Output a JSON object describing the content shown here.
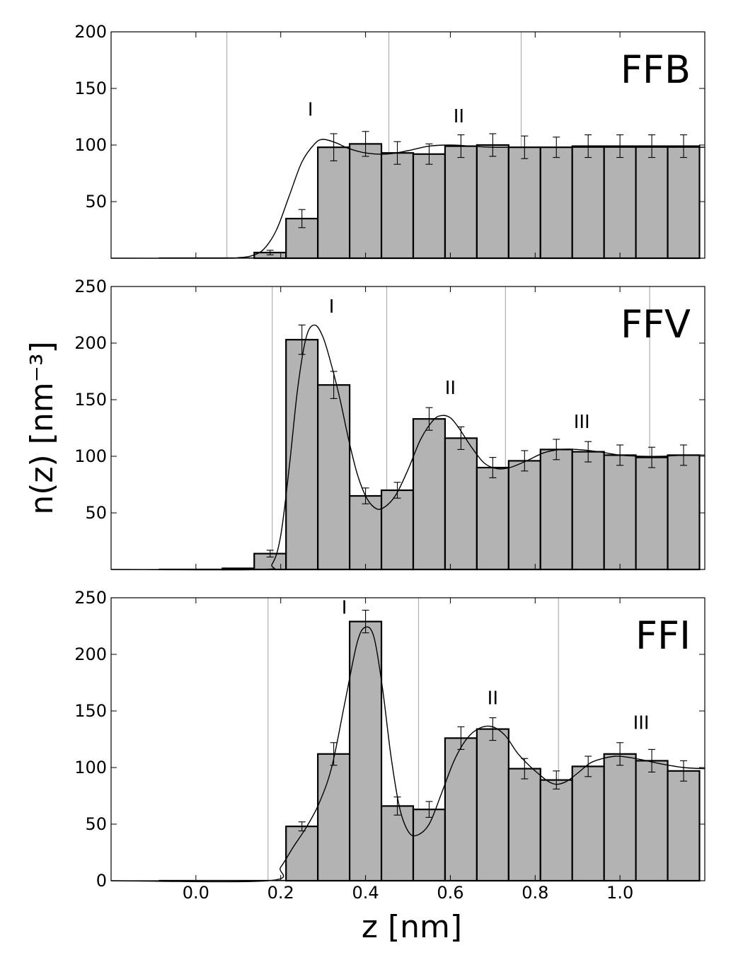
{
  "chart_data": {
    "type": "bar",
    "xlabel": "z [nm]",
    "ylabel": "n(z) [nm⁻³]",
    "xlim": [
      -0.2,
      1.2
    ],
    "x_ticks": [
      "0.0",
      "0.2",
      "0.4",
      "0.6",
      "0.8",
      "1.0"
    ],
    "bar_color": "#b3b3b3",
    "panels": [
      {
        "label": "FFB",
        "ylim": [
          0,
          200
        ],
        "y_ticks": [
          "50",
          "100",
          "150",
          "200"
        ],
        "y_tick_values": [
          50,
          100,
          150,
          200
        ],
        "shell_boundaries": [
          0.073,
          0.455,
          0.767
        ],
        "bar_x": [
          -0.05,
          0.025,
          0.1,
          0.175,
          0.25,
          0.325,
          0.4,
          0.475,
          0.55,
          0.625,
          0.7,
          0.775,
          0.85,
          0.925,
          1.0,
          1.075,
          1.15
        ],
        "values": [
          0,
          0,
          0,
          5,
          35,
          98,
          101,
          93,
          92,
          99,
          100,
          98,
          98,
          99,
          99,
          99,
          99
        ],
        "errors": [
          0,
          0,
          0,
          2,
          8,
          12,
          11,
          10,
          9,
          10,
          10,
          10,
          9,
          10,
          10,
          10,
          10
        ],
        "curve_x": [
          -0.2,
          0.07,
          0.1,
          0.13,
          0.16,
          0.19,
          0.22,
          0.25,
          0.28,
          0.3,
          0.33,
          0.36,
          0.4,
          0.45,
          0.5,
          0.55,
          0.6,
          0.65,
          0.7,
          0.8,
          0.9,
          1.0,
          1.1,
          1.2
        ],
        "curve_y": [
          0,
          0,
          0.5,
          2,
          8,
          25,
          55,
          85,
          101,
          105,
          102,
          97,
          93,
          92,
          95,
          99,
          100,
          99,
          98,
          98,
          98,
          98,
          98,
          98
        ],
        "peaks": [
          {
            "text": "I",
            "x": 0.27,
            "y": 126
          },
          {
            "text": "II",
            "x": 0.62,
            "y": 120
          }
        ]
      },
      {
        "label": "FFV",
        "ylim": [
          0,
          250
        ],
        "y_ticks": [
          "50",
          "100",
          "150",
          "200",
          "250"
        ],
        "y_tick_values": [
          50,
          100,
          150,
          200,
          250
        ],
        "shell_boundaries": [
          0.18,
          0.45,
          0.73,
          1.07
        ],
        "bar_x": [
          -0.05,
          0.025,
          0.1,
          0.175,
          0.25,
          0.325,
          0.4,
          0.475,
          0.55,
          0.625,
          0.7,
          0.775,
          0.85,
          0.925,
          1.0,
          1.075,
          1.15
        ],
        "values": [
          0,
          0,
          1,
          14,
          203,
          163,
          65,
          70,
          133,
          116,
          90,
          96,
          106,
          104,
          101,
          99,
          101
        ],
        "errors": [
          0,
          0,
          0,
          3,
          13,
          12,
          7,
          7,
          10,
          10,
          9,
          9,
          9,
          9,
          9,
          9,
          9
        ],
        "curve_x": [
          -0.2,
          0.15,
          0.18,
          0.2,
          0.22,
          0.24,
          0.26,
          0.28,
          0.3,
          0.32,
          0.34,
          0.36,
          0.38,
          0.4,
          0.42,
          0.44,
          0.47,
          0.5,
          0.53,
          0.56,
          0.58,
          0.6,
          0.62,
          0.65,
          0.68,
          0.71,
          0.74,
          0.78,
          0.82,
          0.86,
          0.9,
          0.95,
          1.0,
          1.05,
          1.1,
          1.15,
          1.2
        ],
        "curve_y": [
          0,
          0,
          5,
          30,
          90,
          160,
          205,
          216,
          205,
          180,
          150,
          115,
          85,
          65,
          55,
          54,
          65,
          88,
          115,
          132,
          136,
          134,
          125,
          108,
          94,
          89,
          90,
          96,
          103,
          106,
          106,
          104,
          101,
          100,
          100,
          101,
          101
        ],
        "peaks": [
          {
            "text": "I",
            "x": 0.32,
            "y": 227
          },
          {
            "text": "II",
            "x": 0.6,
            "y": 155
          },
          {
            "text": "III",
            "x": 0.91,
            "y": 125
          }
        ]
      },
      {
        "label": "FFI",
        "ylim": [
          0,
          250
        ],
        "y_ticks": [
          "0",
          "50",
          "100",
          "150",
          "200",
          "250"
        ],
        "y_tick_values": [
          0,
          50,
          100,
          150,
          200,
          250
        ],
        "shell_boundaries": [
          0.17,
          0.525,
          0.855
        ],
        "bar_x": [
          -0.05,
          0.025,
          0.1,
          0.175,
          0.25,
          0.325,
          0.4,
          0.475,
          0.55,
          0.625,
          0.7,
          0.775,
          0.85,
          0.925,
          1.0,
          1.075,
          1.15
        ],
        "values": [
          0,
          0,
          0,
          0,
          48,
          112,
          229,
          66,
          63,
          126,
          134,
          99,
          89,
          101,
          112,
          106,
          97
        ],
        "errors": [
          0,
          0,
          0,
          0,
          4,
          10,
          10,
          8,
          7,
          10,
          10,
          9,
          8,
          9,
          10,
          10,
          9
        ],
        "curve_x": [
          -0.2,
          0.17,
          0.2,
          0.23,
          0.26,
          0.29,
          0.32,
          0.35,
          0.38,
          0.4,
          0.42,
          0.44,
          0.46,
          0.48,
          0.5,
          0.52,
          0.55,
          0.58,
          0.61,
          0.64,
          0.67,
          0.7,
          0.73,
          0.76,
          0.8,
          0.84,
          0.87,
          0.9,
          0.93,
          0.96,
          0.99,
          1.02,
          1.05,
          1.1,
          1.15,
          1.2
        ],
        "curve_y": [
          0,
          0,
          12,
          30,
          47,
          68,
          100,
          155,
          210,
          224,
          215,
          170,
          110,
          65,
          44,
          40,
          50,
          78,
          107,
          126,
          135,
          136,
          128,
          112,
          97,
          86,
          87,
          95,
          104,
          108,
          110,
          109,
          107,
          103,
          100,
          99
        ],
        "peaks": [
          {
            "text": "I",
            "x": 0.35,
            "y": 236
          },
          {
            "text": "II",
            "x": 0.7,
            "y": 156
          },
          {
            "text": "III",
            "x": 1.05,
            "y": 134
          }
        ]
      }
    ]
  }
}
